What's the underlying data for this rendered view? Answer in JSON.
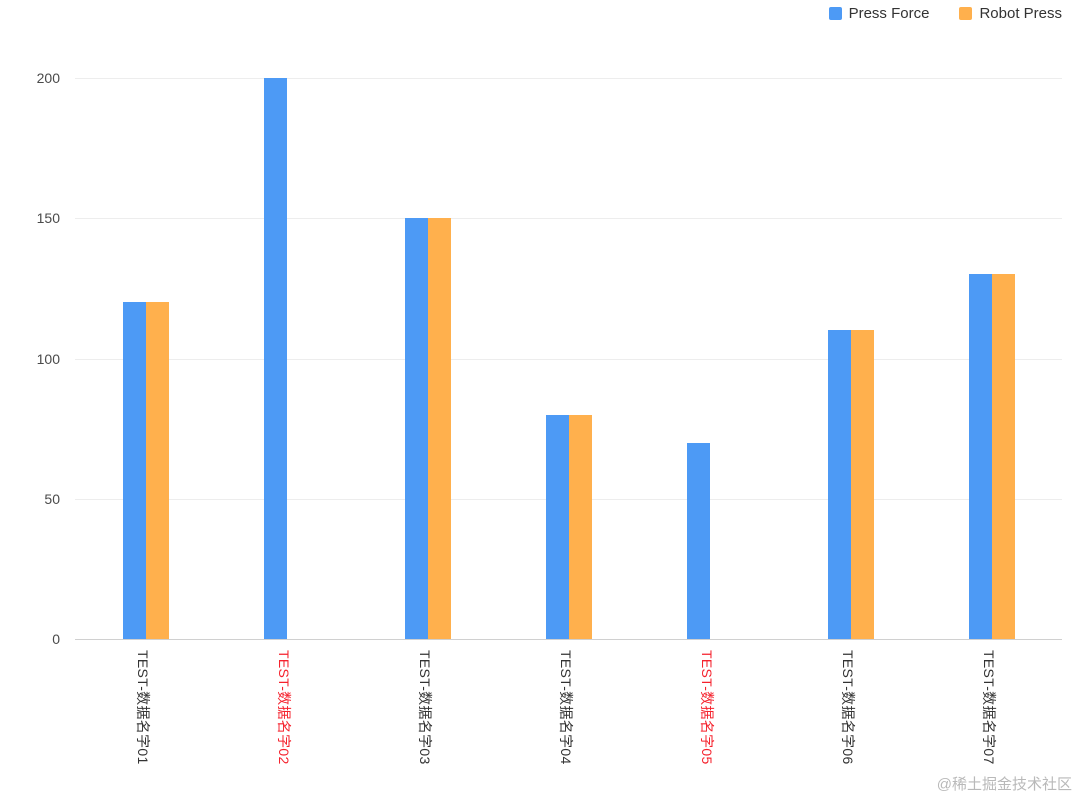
{
  "chart_data": {
    "type": "bar",
    "title": "",
    "categories": [
      "TEST-数据名字01",
      "TEST-数据名字02",
      "TEST-数据名字03",
      "TEST-数据名字04",
      "TEST-数据名字05",
      "TEST-数据名字06",
      "TEST-数据名字07"
    ],
    "category_label_colors": [
      "#333333",
      "#f5222d",
      "#333333",
      "#333333",
      "#f5222d",
      "#333333",
      "#333333"
    ],
    "series": [
      {
        "name": "Press Force",
        "color": "#4D9AF5",
        "values": [
          120,
          200,
          150,
          80,
          70,
          110,
          130
        ]
      },
      {
        "name": "Robot Press",
        "color": "#FFB04D",
        "values": [
          120,
          null,
          150,
          80,
          null,
          110,
          130
        ]
      }
    ],
    "ylim": [
      0,
      200
    ],
    "yticks": [
      0,
      50,
      100,
      150,
      200
    ],
    "grid": true,
    "legend_position": "top-right"
  },
  "watermark": "@稀土掘金技术社区",
  "colors": {
    "gridline": "#ededed",
    "axis_line": "#d0d0d0",
    "ytick_label": "#4a4a4a",
    "legend_text": "#333333"
  }
}
